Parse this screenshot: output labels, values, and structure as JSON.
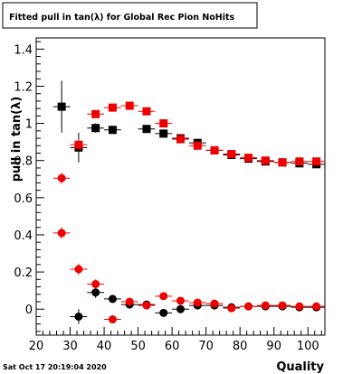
{
  "chart_data": {
    "type": "scatter",
    "title": "Fitted pull in tan(λ) for Global Rec Pion NoHits",
    "xlabel": "Quality",
    "ylabel": "pull in tan(λ)",
    "xlim": [
      20,
      105
    ],
    "ylim": [
      -0.14,
      1.46
    ],
    "xticks": [
      20,
      30,
      40,
      50,
      60,
      70,
      80,
      90,
      100
    ],
    "yticks": [
      0,
      0.2,
      0.4,
      0.6,
      0.8,
      1,
      1.2,
      1.4
    ],
    "grid": false,
    "series": [
      {
        "marker": "square",
        "color": "#000000",
        "xerr": 2.5,
        "points": [
          {
            "x": 27.5,
            "y": 1.09,
            "err": 0.14
          },
          {
            "x": 32.5,
            "y": 0.87,
            "err": 0.08
          },
          {
            "x": 37.5,
            "y": 0.975,
            "err": 0.025
          },
          {
            "x": 42.5,
            "y": 0.965,
            "err": 0.015
          },
          {
            "x": 52.5,
            "y": 0.97,
            "err": 0.015
          },
          {
            "x": 57.5,
            "y": 0.945,
            "err": 0.015
          },
          {
            "x": 62.5,
            "y": 0.92,
            "err": 0.015
          },
          {
            "x": 67.5,
            "y": 0.895,
            "err": 0.015
          },
          {
            "x": 72.5,
            "y": 0.855,
            "err": 0.01
          },
          {
            "x": 77.5,
            "y": 0.83,
            "err": 0.01
          },
          {
            "x": 82.5,
            "y": 0.81,
            "err": 0.01
          },
          {
            "x": 87.5,
            "y": 0.795,
            "err": 0.01
          },
          {
            "x": 92.5,
            "y": 0.79,
            "err": 0.01
          },
          {
            "x": 97.5,
            "y": 0.785,
            "err": 0.01
          },
          {
            "x": 102.5,
            "y": 0.78,
            "err": 0.01
          }
        ]
      },
      {
        "marker": "square",
        "color": "#ee0000",
        "xerr": 2.5,
        "points": [
          {
            "x": 32.5,
            "y": 0.885,
            "err": 0.03
          },
          {
            "x": 37.5,
            "y": 1.05,
            "err": 0.02
          },
          {
            "x": 42.5,
            "y": 1.085,
            "err": 0.02
          },
          {
            "x": 47.5,
            "y": 1.095,
            "err": 0.015
          },
          {
            "x": 52.5,
            "y": 1.065,
            "err": 0.015
          },
          {
            "x": 57.5,
            "y": 1.0,
            "err": 0.015
          },
          {
            "x": 62.5,
            "y": 0.915,
            "err": 0.015
          },
          {
            "x": 67.5,
            "y": 0.88,
            "err": 0.015
          },
          {
            "x": 72.5,
            "y": 0.855,
            "err": 0.01
          },
          {
            "x": 77.5,
            "y": 0.835,
            "err": 0.01
          },
          {
            "x": 82.5,
            "y": 0.815,
            "err": 0.01
          },
          {
            "x": 87.5,
            "y": 0.8,
            "err": 0.01
          },
          {
            "x": 92.5,
            "y": 0.79,
            "err": 0.01
          },
          {
            "x": 97.5,
            "y": 0.795,
            "err": 0.01
          },
          {
            "x": 102.5,
            "y": 0.795,
            "err": 0.01
          }
        ]
      },
      {
        "marker": "circle",
        "color": "#000000",
        "xerr": 2.5,
        "points": [
          {
            "x": 32.5,
            "y": -0.04,
            "err": 0.04
          },
          {
            "x": 37.5,
            "y": 0.09,
            "err": 0.03
          },
          {
            "x": 42.5,
            "y": 0.055,
            "err": 0.02
          },
          {
            "x": 47.5,
            "y": 0.025,
            "err": 0.015
          },
          {
            "x": 52.5,
            "y": 0.025,
            "err": 0.015
          },
          {
            "x": 57.5,
            "y": -0.02,
            "err": 0.01
          },
          {
            "x": 62.5,
            "y": 0.0,
            "err": 0.01
          },
          {
            "x": 67.5,
            "y": 0.02,
            "err": 0.01
          },
          {
            "x": 72.5,
            "y": 0.02,
            "err": 0.01
          },
          {
            "x": 77.5,
            "y": 0.01,
            "err": 0.01
          },
          {
            "x": 82.5,
            "y": 0.015,
            "err": 0.01
          },
          {
            "x": 87.5,
            "y": 0.015,
            "err": 0.01
          },
          {
            "x": 92.5,
            "y": 0.015,
            "err": 0.01
          },
          {
            "x": 97.5,
            "y": 0.01,
            "err": 0.01
          },
          {
            "x": 102.5,
            "y": 0.01,
            "err": 0.01
          }
        ]
      },
      {
        "marker": "circle",
        "color": "#ee0000",
        "xerr": 2.5,
        "points": [
          {
            "x": 27.5,
            "y": 0.705,
            "err": 0.03
          },
          {
            "x": 27.5,
            "y": 0.41,
            "err": 0.03
          },
          {
            "x": 32.5,
            "y": 0.215,
            "err": 0.03
          },
          {
            "x": 37.5,
            "y": 0.135,
            "err": 0.025
          },
          {
            "x": 42.5,
            "y": -0.055,
            "err": 0.015
          },
          {
            "x": 47.5,
            "y": 0.04,
            "err": 0.015
          },
          {
            "x": 52.5,
            "y": 0.02,
            "err": 0.015
          },
          {
            "x": 57.5,
            "y": 0.07,
            "err": 0.01
          },
          {
            "x": 62.5,
            "y": 0.045,
            "err": 0.01
          },
          {
            "x": 67.5,
            "y": 0.035,
            "err": 0.01
          },
          {
            "x": 72.5,
            "y": 0.03,
            "err": 0.01
          },
          {
            "x": 77.5,
            "y": 0.005,
            "err": 0.01
          },
          {
            "x": 82.5,
            "y": 0.015,
            "err": 0.01
          },
          {
            "x": 87.5,
            "y": 0.02,
            "err": 0.01
          },
          {
            "x": 92.5,
            "y": 0.02,
            "err": 0.01
          },
          {
            "x": 97.5,
            "y": 0.015,
            "err": 0.01
          },
          {
            "x": 102.5,
            "y": 0.015,
            "err": 0.01
          }
        ]
      }
    ]
  },
  "footer": {
    "timestamp": "Sat Oct 17 20:19:04 2020"
  }
}
